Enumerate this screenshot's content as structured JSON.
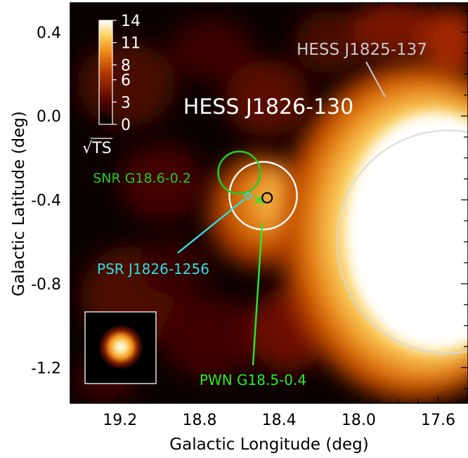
{
  "chart_data": {
    "type": "heatmap",
    "title": "",
    "xlabel": "Galactic Longitude (deg)",
    "ylabel": "Galactic Latitude (deg)",
    "xlim": [
      19.45,
      17.45
    ],
    "ylim": [
      -1.37,
      0.54
    ],
    "x_ticks": [
      19.2,
      18.8,
      18.4,
      18.0,
      17.6
    ],
    "x_tick_labels": [
      "19.2",
      "18.8",
      "18.4",
      "18.0",
      "17.6"
    ],
    "y_ticks": [
      0.4,
      0.0,
      -0.4,
      -0.8,
      -1.2
    ],
    "y_tick_labels": [
      "0.4",
      "0.0",
      "-0.4",
      "-0.8",
      "-1.2"
    ],
    "colorbar": {
      "label": "√TS",
      "range": [
        0,
        14
      ],
      "ticks": [
        14,
        11,
        8,
        6,
        3,
        0
      ],
      "tick_labels": [
        "14",
        "11",
        "8",
        "6",
        "3",
        "0"
      ]
    },
    "sources": [
      {
        "name": "HESS J1826-130",
        "l": 18.48,
        "b": -0.38,
        "radius_deg": 0.17,
        "color": "#ffffff"
      },
      {
        "name": "HESS J1825-137",
        "l": 17.55,
        "b": -0.6,
        "radius_deg": 0.56,
        "color": "#d8d8d8"
      },
      {
        "name": "SNR G18.6-0.2",
        "l": 18.6,
        "b": -0.27,
        "radius_deg": 0.06,
        "color": "#22cc22"
      },
      {
        "name": "PSR J1826-1256",
        "l": 18.556,
        "b": -0.38,
        "color": "#33dddd"
      },
      {
        "name": "PWN G18.5-0.4",
        "l": 18.5,
        "b": -0.4,
        "color": "#22ee22"
      },
      {
        "l": 18.46,
        "b": -0.39,
        "color": "#000000"
      }
    ],
    "psf_inset": true
  },
  "labels": {
    "colorbar_label": "√TS"
  },
  "colors": {
    "background": "#0a0000",
    "axis": "#000000"
  }
}
